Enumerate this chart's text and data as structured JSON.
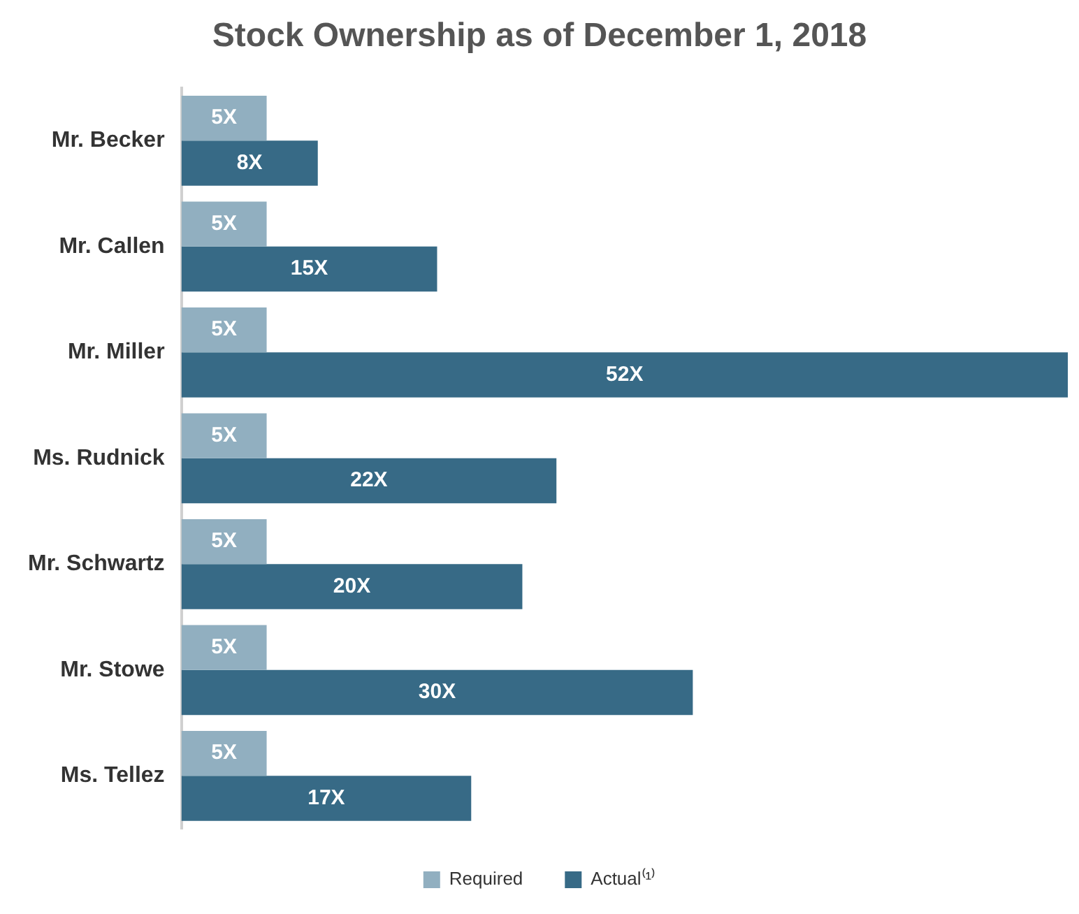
{
  "chart_data": {
    "type": "bar",
    "orientation": "horizontal",
    "title": "Stock Ownership as of December 1, 2018",
    "categories": [
      "Mr. Becker",
      "Mr. Callen",
      "Mr. Miller",
      "Ms. Rudnick",
      "Mr. Schwartz",
      "Mr. Stowe",
      "Ms. Tellez"
    ],
    "series": [
      {
        "name": "Required",
        "color": "#91afc0",
        "values": [
          5,
          5,
          5,
          5,
          5,
          5,
          5
        ],
        "value_labels": [
          "5X",
          "5X",
          "5X",
          "5X",
          "5X",
          "5X",
          "5X"
        ]
      },
      {
        "name": "Actual⁽¹⁾",
        "color": "#376a86",
        "values": [
          8,
          15,
          52,
          22,
          20,
          30,
          17
        ],
        "value_labels": [
          "8X",
          "15X",
          "52X",
          "22X",
          "20X",
          "30X",
          "17X"
        ]
      }
    ],
    "legend": "bottom"
  }
}
